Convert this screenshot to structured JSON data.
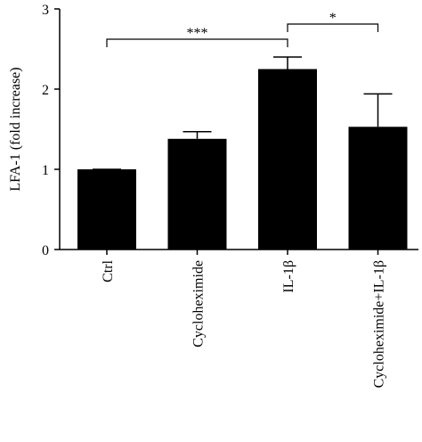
{
  "chart_data": {
    "type": "bar",
    "y_label": "LFA-1 (fold increase)",
    "categories": [
      "Ctrl",
      "Cycloheximide",
      "IL-1β",
      "Cycloheximide+IL-1β"
    ],
    "values": [
      1.0,
      1.38,
      2.25,
      1.53
    ],
    "errors": [
      0,
      0.09,
      0.15,
      0.41
    ],
    "color": "#000000",
    "ylim": [
      0,
      3
    ],
    "yticks": [
      0,
      1,
      2,
      3
    ],
    "annotations": [
      "***",
      "*"
    ]
  }
}
